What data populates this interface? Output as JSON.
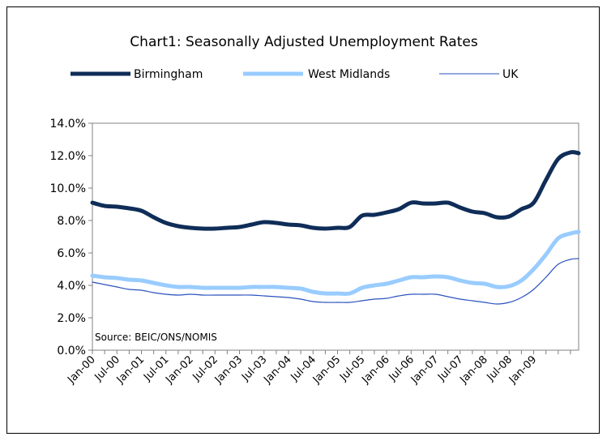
{
  "chart_data": {
    "type": "line",
    "title": "Chart1:  Seasonally Adjusted Unemployment Rates",
    "source_note": "Source: BEIC/ONS/NOMIS",
    "xlabel": "",
    "ylabel": "",
    "ylim": [
      0,
      14
    ],
    "y_ticks": [
      "0.0%",
      "2.0%",
      "4.0%",
      "6.0%",
      "8.0%",
      "10.0%",
      "12.0%",
      "14.0%"
    ],
    "x_ticks": [
      "Jan-00",
      "Jul-00",
      "Jan-01",
      "Jul-01",
      "Jan-02",
      "Jul-02",
      "Jan-03",
      "Jul-03",
      "Jan-04",
      "Jul-04",
      "Jan-05",
      "Jul-05",
      "Jan-06",
      "Jul-06",
      "Jan-07",
      "Jul-07",
      "Jan-08",
      "Jul-08",
      "Jan-09"
    ],
    "x_range": [
      "Jan-00",
      "Dec-09"
    ],
    "grid": false,
    "legend_position": "top",
    "series": [
      {
        "name": "Birmingham",
        "color": "#0f2d58",
        "x": [
          "Jan-00",
          "Apr-00",
          "Jul-00",
          "Oct-00",
          "Jan-01",
          "Apr-01",
          "Jul-01",
          "Oct-01",
          "Jan-02",
          "Apr-02",
          "Jul-02",
          "Oct-02",
          "Jan-03",
          "Apr-03",
          "Jul-03",
          "Oct-03",
          "Jan-04",
          "Apr-04",
          "Jul-04",
          "Oct-04",
          "Jan-05",
          "Apr-05",
          "Jul-05",
          "Oct-05",
          "Jan-06",
          "Apr-06",
          "Jul-06",
          "Oct-06",
          "Jan-07",
          "Apr-07",
          "Jul-07",
          "Oct-07",
          "Jan-08",
          "Apr-08",
          "Jul-08",
          "Oct-08",
          "Jan-09",
          "Apr-09",
          "Jul-09",
          "Oct-09",
          "Dec-09"
        ],
        "values": [
          9.1,
          8.9,
          8.85,
          8.75,
          8.6,
          8.2,
          7.85,
          7.65,
          7.55,
          7.5,
          7.5,
          7.55,
          7.6,
          7.75,
          7.9,
          7.85,
          7.75,
          7.7,
          7.55,
          7.5,
          7.55,
          7.6,
          8.3,
          8.35,
          8.5,
          8.7,
          9.1,
          9.05,
          9.05,
          9.1,
          8.8,
          8.55,
          8.45,
          8.2,
          8.25,
          8.7,
          9.1,
          10.5,
          11.8,
          12.2,
          12.15
        ]
      },
      {
        "name": "West Midlands",
        "color": "#99ccff",
        "x": [
          "Jan-00",
          "Apr-00",
          "Jul-00",
          "Oct-00",
          "Jan-01",
          "Apr-01",
          "Jul-01",
          "Oct-01",
          "Jan-02",
          "Apr-02",
          "Jul-02",
          "Oct-02",
          "Jan-03",
          "Apr-03",
          "Jul-03",
          "Oct-03",
          "Jan-04",
          "Apr-04",
          "Jul-04",
          "Oct-04",
          "Jan-05",
          "Apr-05",
          "Jul-05",
          "Oct-05",
          "Jan-06",
          "Apr-06",
          "Jul-06",
          "Oct-06",
          "Jan-07",
          "Apr-07",
          "Jul-07",
          "Oct-07",
          "Jan-08",
          "Apr-08",
          "Jul-08",
          "Oct-08",
          "Jan-09",
          "Apr-09",
          "Jul-09",
          "Oct-09",
          "Dec-09"
        ],
        "values": [
          4.6,
          4.5,
          4.45,
          4.35,
          4.3,
          4.15,
          4.0,
          3.9,
          3.9,
          3.85,
          3.85,
          3.85,
          3.85,
          3.9,
          3.9,
          3.9,
          3.85,
          3.8,
          3.6,
          3.5,
          3.5,
          3.5,
          3.85,
          4.0,
          4.1,
          4.3,
          4.5,
          4.5,
          4.55,
          4.5,
          4.3,
          4.15,
          4.1,
          3.9,
          3.95,
          4.3,
          5.0,
          5.9,
          6.9,
          7.2,
          7.3
        ]
      },
      {
        "name": "UK",
        "color": "#2a52be",
        "x": [
          "Jan-00",
          "Apr-00",
          "Jul-00",
          "Oct-00",
          "Jan-01",
          "Apr-01",
          "Jul-01",
          "Oct-01",
          "Jan-02",
          "Apr-02",
          "Jul-02",
          "Oct-02",
          "Jan-03",
          "Apr-03",
          "Jul-03",
          "Oct-03",
          "Jan-04",
          "Apr-04",
          "Jul-04",
          "Oct-04",
          "Jan-05",
          "Apr-05",
          "Jul-05",
          "Oct-05",
          "Jan-06",
          "Apr-06",
          "Jul-06",
          "Oct-06",
          "Jan-07",
          "Apr-07",
          "Jul-07",
          "Oct-07",
          "Jan-08",
          "Apr-08",
          "Jul-08",
          "Oct-08",
          "Jan-09",
          "Apr-09",
          "Jul-09",
          "Oct-09",
          "Dec-09"
        ],
        "values": [
          4.2,
          4.05,
          3.9,
          3.75,
          3.7,
          3.55,
          3.45,
          3.4,
          3.45,
          3.4,
          3.4,
          3.4,
          3.4,
          3.4,
          3.35,
          3.3,
          3.25,
          3.15,
          3.0,
          2.95,
          2.95,
          2.95,
          3.05,
          3.15,
          3.2,
          3.35,
          3.45,
          3.45,
          3.45,
          3.3,
          3.15,
          3.05,
          2.95,
          2.85,
          2.95,
          3.25,
          3.75,
          4.5,
          5.3,
          5.6,
          5.65
        ]
      }
    ]
  }
}
